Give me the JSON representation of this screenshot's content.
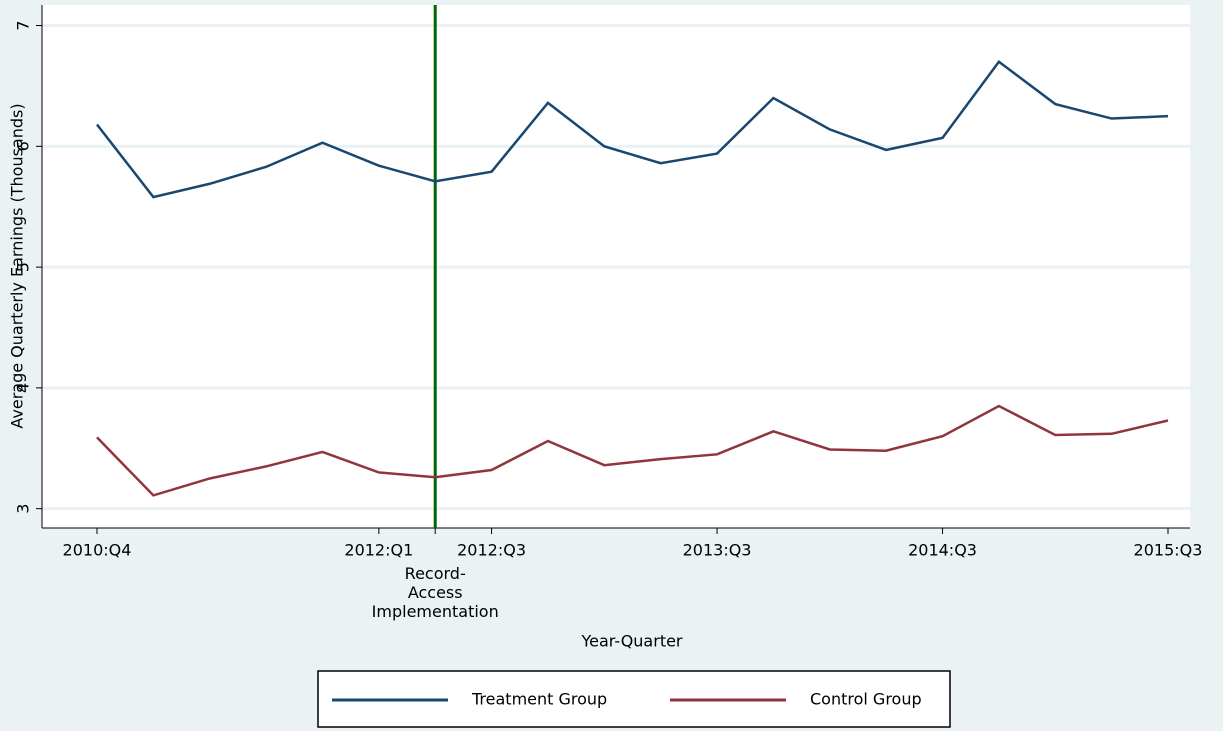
{
  "chart_data": {
    "type": "line",
    "y_label": "Average Quarterly Earnings (Thousands)",
    "x_label": "Year-Quarter",
    "categories": [
      "2010:Q4",
      null,
      null,
      null,
      null,
      "2012:Q1",
      null,
      "2012:Q3",
      null,
      null,
      null,
      "2013:Q3",
      null,
      null,
      null,
      "2014:Q3",
      null,
      null,
      null,
      "2015:Q3"
    ],
    "series": [
      {
        "name": "Treatment Group",
        "color": "#1a476f",
        "values": [
          6.18,
          5.58,
          5.69,
          5.83,
          6.03,
          5.84,
          5.71,
          5.79,
          6.36,
          6.0,
          5.86,
          5.94,
          6.4,
          6.14,
          5.97,
          6.07,
          6.7,
          6.35,
          6.23,
          6.25
        ]
      },
      {
        "name": "Control Group",
        "color": "#90353b",
        "values": [
          3.59,
          3.11,
          3.25,
          3.35,
          3.47,
          3.3,
          3.26,
          3.32,
          3.56,
          3.36,
          3.41,
          3.45,
          3.64,
          3.49,
          3.48,
          3.6,
          3.85,
          3.61,
          3.62,
          3.73
        ]
      }
    ],
    "annotation": {
      "text": "Record-\nAccess\nImplementation",
      "x_index": 6,
      "color": "#006400"
    },
    "ylim": [
      2.84,
      7.17
    ],
    "yticks": [
      3,
      4,
      5,
      6,
      7
    ],
    "grid": true,
    "legend": "bottom"
  }
}
